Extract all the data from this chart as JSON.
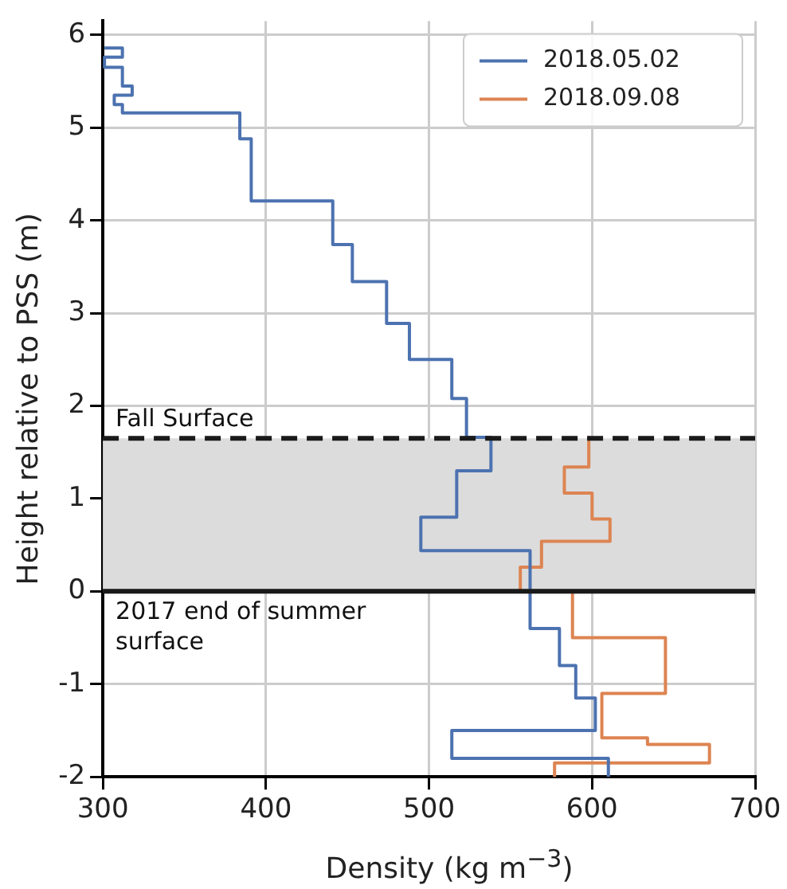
{
  "chart_data": {
    "type": "line",
    "xlabel": "Density (kg m$^{−3}$)",
    "ylabel": "Height relative to PSS (m)",
    "xlim": [
      300,
      700
    ],
    "xticks": [
      300,
      400,
      500,
      600,
      700
    ],
    "ylim": [
      -2,
      6.15
    ],
    "yticks": [
      -2,
      -1,
      0,
      1,
      2,
      3,
      4,
      5,
      6
    ],
    "grid": true,
    "legend": "top right",
    "line_style": "solid",
    "marker": "none",
    "series": [
      {
        "name": "2018.05.02",
        "color": "#4c72b0",
        "x": [
          301,
          312,
          312,
          301,
          301,
          312,
          312,
          318,
          318,
          307,
          307,
          312,
          312,
          384,
          384,
          391,
          391,
          441,
          441,
          453,
          453,
          474,
          474,
          488,
          488,
          514,
          514,
          523,
          523,
          538,
          538,
          517,
          517,
          495,
          495,
          562,
          562,
          580,
          580,
          590,
          590,
          602,
          602,
          514,
          514,
          610,
          610
        ],
        "values": [
          5.86,
          5.86,
          5.76,
          5.76,
          5.65,
          5.65,
          5.45,
          5.45,
          5.35,
          5.35,
          5.25,
          5.25,
          5.16,
          5.16,
          4.88,
          4.88,
          4.21,
          4.21,
          3.74,
          3.74,
          3.34,
          3.34,
          2.89,
          2.89,
          2.5,
          2.5,
          2.08,
          2.08,
          1.66,
          1.66,
          1.3,
          1.3,
          0.8,
          0.8,
          0.44,
          0.44,
          -0.4,
          -0.4,
          -0.8,
          -0.8,
          -1.15,
          -1.15,
          -1.5,
          -1.5,
          -1.8,
          -1.8,
          -2
        ]
      },
      {
        "name": "2018.09.08",
        "color": "#dd8452",
        "x": [
          598,
          598,
          583,
          583,
          600,
          600,
          611,
          611,
          569,
          569,
          556,
          556,
          588,
          588,
          645,
          645,
          606,
          606,
          634,
          634,
          672,
          672,
          577,
          577
        ],
        "values": [
          1.66,
          1.34,
          1.34,
          1.06,
          1.06,
          0.78,
          0.78,
          0.54,
          0.54,
          0.26,
          0.26,
          0,
          0,
          -0.5,
          -0.5,
          -1.1,
          -1.1,
          -1.58,
          -1.58,
          -1.65,
          -1.65,
          -1.85,
          -1.85,
          -2
        ]
      }
    ],
    "ref_lines": [
      {
        "axis": "y",
        "value": 1.65,
        "label": "Fall Surface",
        "color": "#1a1a1a",
        "line_style": "dashed"
      },
      {
        "axis": "y",
        "value": 0,
        "label": "2017 end of summer surface",
        "color": "#1a1a1a",
        "line_style": "solid"
      }
    ],
    "bands": [
      {
        "axis": "y",
        "from": 0,
        "to": 1.65,
        "color": "#dcdcdc"
      }
    ]
  }
}
